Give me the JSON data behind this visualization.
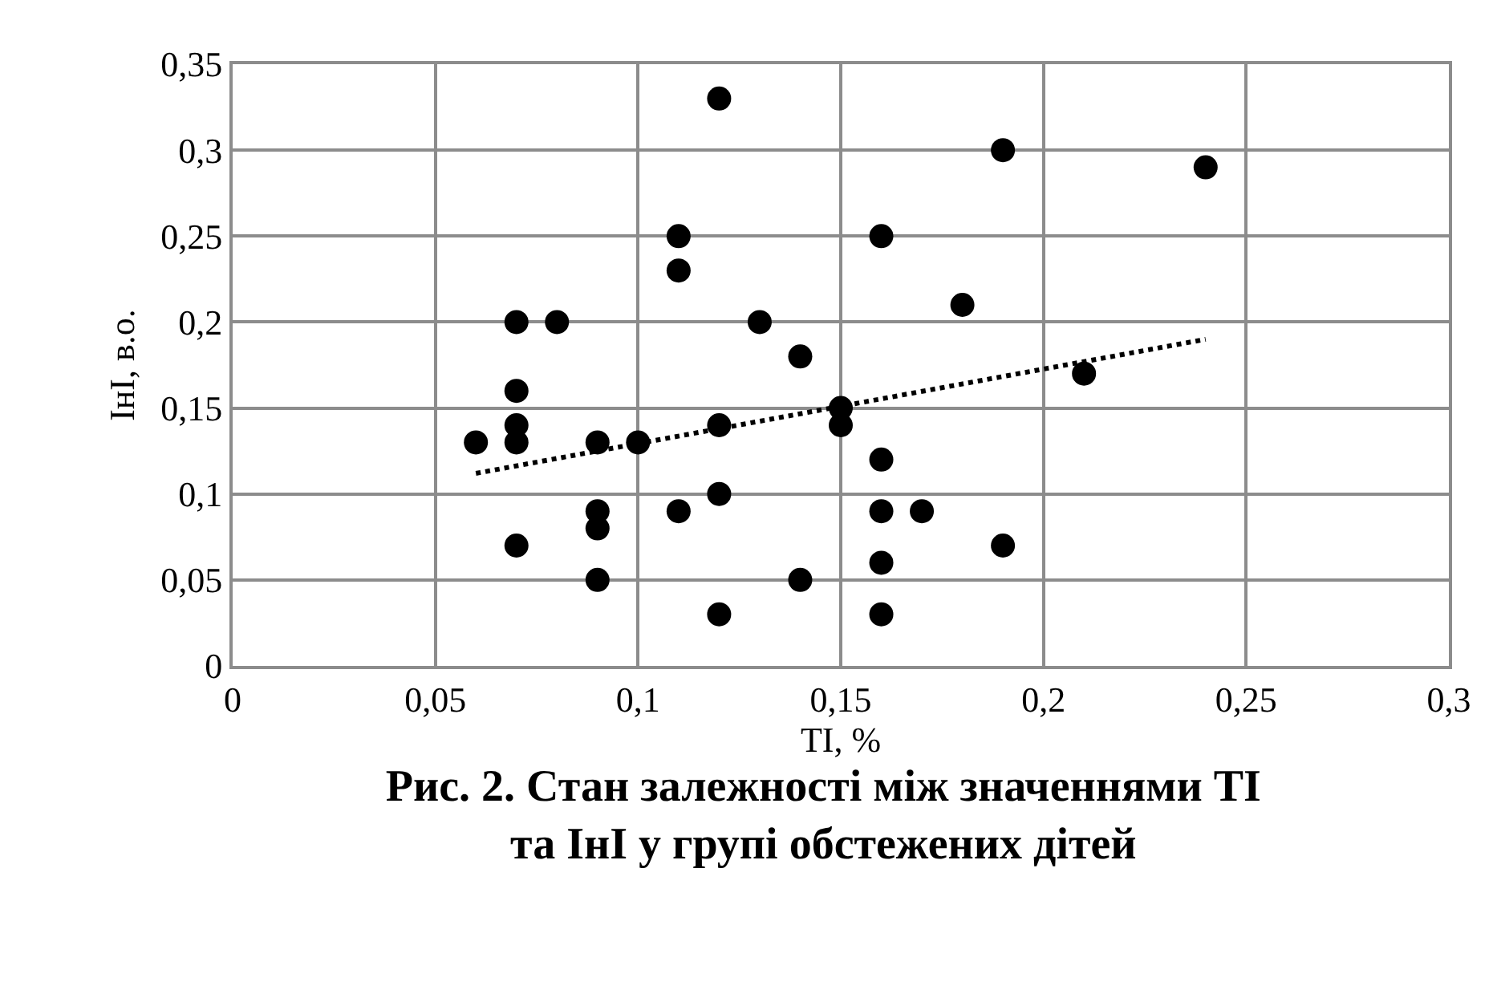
{
  "chart_data": {
    "type": "scatter",
    "title": "Рис. 2. Стан залежності між значеннями ТІ\nта ІнІ у групі обстежених дітей",
    "xlabel": "ТІ, %",
    "ylabel": "ІнІ, в.о.",
    "xlim": [
      0,
      0.3
    ],
    "xticks": [
      0,
      {
        "value": 0.05,
        "label": "0,05"
      },
      {
        "value": 0.1,
        "label": "0,1"
      },
      {
        "value": 0.15,
        "label": "0,15"
      },
      {
        "value": 0.2,
        "label": "0,2"
      },
      {
        "value": 0.25,
        "label": "0,25"
      },
      {
        "value": 0.3,
        "label": "0,3"
      }
    ],
    "ylim": [
      0,
      0.35
    ],
    "yticks": [
      0,
      {
        "value": 0.05,
        "label": "0,05"
      },
      {
        "value": 0.1,
        "label": "0,1"
      },
      {
        "value": 0.15,
        "label": "0,15"
      },
      {
        "value": 0.2,
        "label": "0,2"
      },
      {
        "value": 0.25,
        "label": "0,25"
      },
      {
        "value": 0.3,
        "label": "0,3"
      },
      {
        "value": 0.35,
        "label": "0,35"
      }
    ],
    "grid": true,
    "marker": "circle",
    "series": [
      {
        "color": "#000000",
        "x": [
          0.06,
          0.07,
          0.07,
          0.07,
          0.07,
          0.07,
          0.08,
          0.09,
          0.09,
          0.09,
          0.09,
          0.1,
          0.11,
          0.11,
          0.11,
          0.12,
          0.12,
          0.12,
          0.12,
          0.13,
          0.14,
          0.14,
          0.15,
          0.15,
          0.16,
          0.16,
          0.16,
          0.16,
          0.16,
          0.17,
          0.18,
          0.19,
          0.19,
          0.21,
          0.24
        ],
        "values": [
          0.13,
          0.2,
          0.16,
          0.14,
          0.13,
          0.07,
          0.2,
          0.13,
          0.09,
          0.08,
          0.05,
          0.13,
          0.25,
          0.23,
          0.09,
          0.33,
          0.14,
          0.1,
          0.03,
          0.2,
          0.18,
          0.05,
          0.15,
          0.14,
          0.25,
          0.12,
          0.09,
          0.06,
          0.03,
          0.09,
          0.21,
          0.3,
          0.07,
          0.17,
          0.29
        ]
      },
      {
        "type": "line",
        "color": "#000000",
        "marker": "none",
        "line_style": "dotted",
        "x": [
          0.06,
          0.24
        ],
        "values": [
          0.112,
          0.19
        ]
      }
    ]
  }
}
